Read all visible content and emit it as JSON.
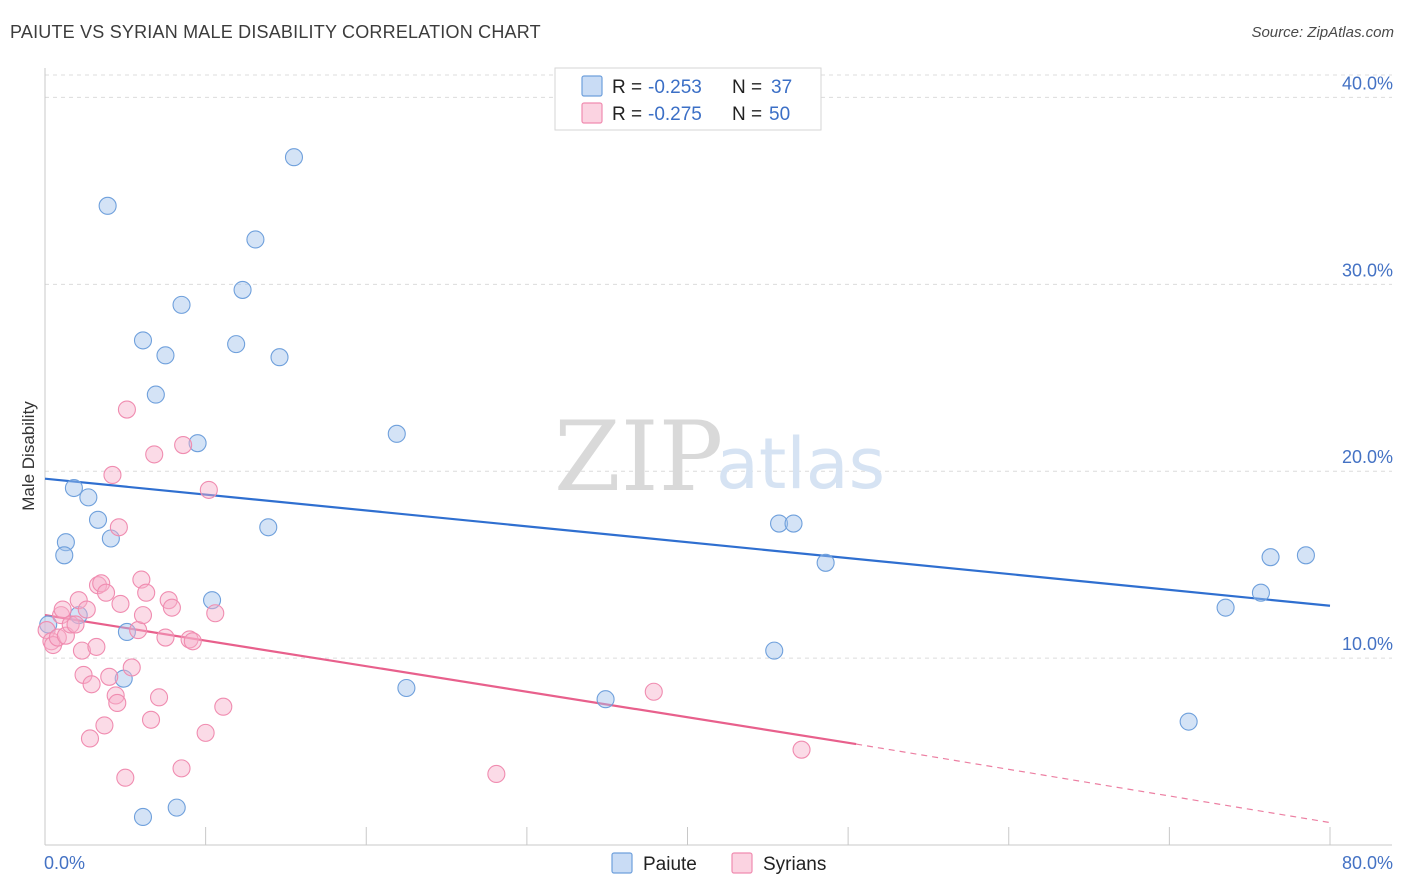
{
  "title": "PAIUTE VS SYRIAN MALE DISABILITY CORRELATION CHART",
  "source": "Source: ZipAtlas.com",
  "watermark": {
    "zip": "ZIP",
    "atlas": "atlas"
  },
  "legend_top": {
    "rows": [
      {
        "r_label": "R = ",
        "r_value": "-0.253",
        "n_label": "N = ",
        "n_value": "37",
        "color": "#6fa0dc"
      },
      {
        "r_label": "R = ",
        "r_value": "-0.275",
        "n_label": "N = ",
        "n_value": "50",
        "color": "#f08cb0"
      }
    ]
  },
  "legend_bottom": {
    "items": [
      {
        "label": "Paiute",
        "color": "#6fa0dc"
      },
      {
        "label": "Syrians",
        "color": "#f08cb0"
      }
    ]
  },
  "chart_data": {
    "type": "scatter",
    "title": "PAIUTE VS SYRIAN MALE DISABILITY CORRELATION CHART",
    "xlabel": "",
    "ylabel": "Male Disability",
    "xlim": [
      0,
      80
    ],
    "ylim": [
      0,
      41.2
    ],
    "x_tick_labels": [
      "0.0%",
      "80.0%"
    ],
    "y_ticks": [
      10,
      20,
      30,
      40
    ],
    "y_tick_labels": [
      "10.0%",
      "20.0%",
      "30.0%",
      "40.0%"
    ],
    "grid": true,
    "legend_position": "top-center",
    "series": [
      {
        "name": "Paiute",
        "color": "#6fa0dc",
        "line_color": "#2f6fd0",
        "R": -0.253,
        "N": 37,
        "trend": {
          "x": [
            0,
            80
          ],
          "y": [
            19.6,
            12.8
          ]
        },
        "points": [
          [
            0.2,
            11.8
          ],
          [
            1.3,
            16.2
          ],
          [
            1.2,
            15.5
          ],
          [
            1.8,
            19.1
          ],
          [
            2.7,
            18.6
          ],
          [
            3.3,
            17.4
          ],
          [
            4.1,
            16.4
          ],
          [
            3.9,
            34.2
          ],
          [
            4.9,
            8.9
          ],
          [
            5.1,
            11.4
          ],
          [
            6.1,
            1.5
          ],
          [
            6.1,
            27.0
          ],
          [
            6.9,
            24.1
          ],
          [
            7.5,
            26.2
          ],
          [
            8.2,
            2.0
          ],
          [
            8.5,
            28.9
          ],
          [
            9.5,
            21.5
          ],
          [
            10.4,
            13.1
          ],
          [
            11.9,
            26.8
          ],
          [
            13.1,
            32.4
          ],
          [
            12.3,
            29.7
          ],
          [
            13.9,
            17.0
          ],
          [
            14.6,
            26.1
          ],
          [
            15.5,
            36.8
          ],
          [
            21.9,
            22.0
          ],
          [
            22.5,
            8.4
          ],
          [
            34.9,
            7.8
          ],
          [
            45.4,
            10.4
          ],
          [
            45.7,
            17.2
          ],
          [
            46.6,
            17.2
          ],
          [
            48.6,
            15.1
          ],
          [
            71.2,
            6.6
          ],
          [
            73.5,
            12.7
          ],
          [
            75.7,
            13.5
          ],
          [
            76.3,
            15.4
          ],
          [
            78.5,
            15.5
          ],
          [
            2.1,
            12.3
          ]
        ]
      },
      {
        "name": "Syrians",
        "color": "#f08cb0",
        "line_color": "#e8608c",
        "R": -0.275,
        "N": 50,
        "trend": {
          "x": [
            0,
            50.5
          ],
          "y": [
            12.3,
            5.4
          ]
        },
        "trend_dashed": {
          "x": [
            50.5,
            80
          ],
          "y": [
            5.4,
            1.2
          ]
        },
        "points": [
          [
            0.1,
            11.5
          ],
          [
            0.4,
            10.9
          ],
          [
            0.5,
            10.7
          ],
          [
            0.8,
            11.1
          ],
          [
            1.0,
            12.3
          ],
          [
            1.1,
            12.6
          ],
          [
            1.3,
            11.2
          ],
          [
            1.6,
            11.8
          ],
          [
            1.9,
            11.8
          ],
          [
            2.1,
            13.1
          ],
          [
            2.3,
            10.4
          ],
          [
            2.4,
            9.1
          ],
          [
            2.6,
            12.6
          ],
          [
            2.8,
            5.7
          ],
          [
            2.9,
            8.6
          ],
          [
            3.2,
            10.6
          ],
          [
            3.3,
            13.9
          ],
          [
            3.5,
            14.0
          ],
          [
            3.7,
            6.4
          ],
          [
            3.8,
            13.5
          ],
          [
            4.0,
            9.0
          ],
          [
            4.2,
            19.8
          ],
          [
            4.4,
            8.0
          ],
          [
            4.5,
            7.6
          ],
          [
            4.6,
            17.0
          ],
          [
            4.7,
            12.9
          ],
          [
            5.0,
            3.6
          ],
          [
            5.1,
            23.3
          ],
          [
            5.4,
            9.5
          ],
          [
            5.8,
            11.5
          ],
          [
            6.0,
            14.2
          ],
          [
            6.1,
            12.3
          ],
          [
            6.3,
            13.5
          ],
          [
            6.6,
            6.7
          ],
          [
            6.8,
            20.9
          ],
          [
            7.1,
            7.9
          ],
          [
            7.5,
            11.1
          ],
          [
            7.7,
            13.1
          ],
          [
            7.9,
            12.7
          ],
          [
            8.5,
            4.1
          ],
          [
            8.6,
            21.4
          ],
          [
            9.0,
            11.0
          ],
          [
            9.2,
            10.9
          ],
          [
            10.0,
            6.0
          ],
          [
            10.2,
            19.0
          ],
          [
            10.6,
            12.4
          ],
          [
            11.1,
            7.4
          ],
          [
            28.1,
            3.8
          ],
          [
            37.9,
            8.2
          ],
          [
            47.1,
            5.1
          ]
        ]
      }
    ]
  }
}
